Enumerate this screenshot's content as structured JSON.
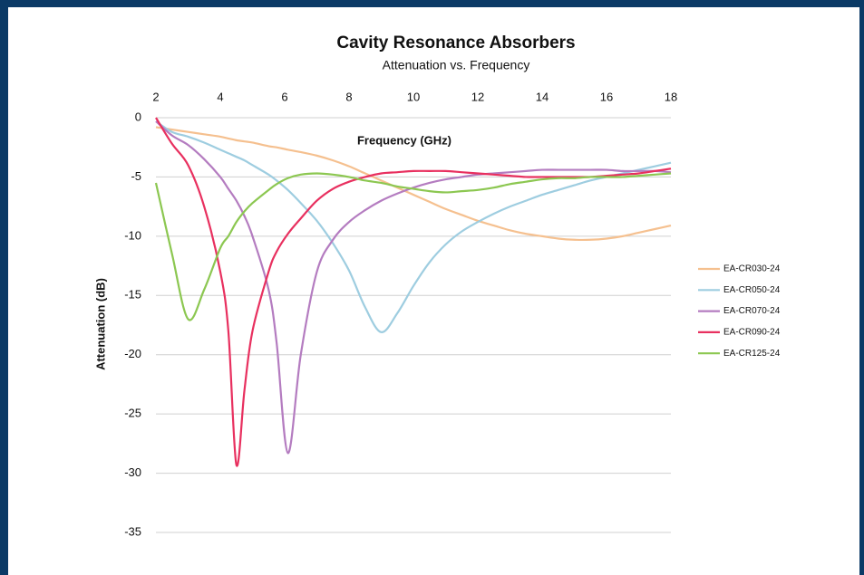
{
  "chart_data": {
    "type": "line",
    "title": "Cavity Resonance Absorbers",
    "subtitle": "Attenuation vs. Frequency",
    "x_label": "Frequency (GHz)",
    "y_label": "Attenuation (dB)",
    "x": [
      2,
      2.5,
      3,
      3.5,
      4,
      4.25,
      4.5,
      4.75,
      5,
      5.5,
      5.75,
      6.1,
      6.5,
      7,
      7.5,
      8,
      8.5,
      9,
      9.5,
      10,
      10.5,
      11,
      11.5,
      12,
      12.5,
      13,
      13.5,
      14,
      14.5,
      15,
      15.5,
      16,
      16.5,
      17,
      17.5,
      18
    ],
    "series": [
      {
        "name": "EA-CR030-24",
        "color": "#f5c08f",
        "values": [
          -0.8,
          -1.0,
          -1.2,
          -1.4,
          -1.6,
          -1.75,
          -1.9,
          -2.0,
          -2.1,
          -2.4,
          -2.5,
          -2.7,
          -2.9,
          -3.2,
          -3.6,
          -4.1,
          -4.7,
          -5.3,
          -5.9,
          -6.5,
          -7.1,
          -7.7,
          -8.2,
          -8.7,
          -9.1,
          -9.5,
          -9.8,
          -10.0,
          -10.2,
          -10.3,
          -10.3,
          -10.2,
          -10.0,
          -9.7,
          -9.4,
          -9.1
        ]
      },
      {
        "name": "EA-CR050-24",
        "color": "#9ecde0",
        "values": [
          -0.3,
          -1.2,
          -1.6,
          -2.1,
          -2.7,
          -3.0,
          -3.3,
          -3.6,
          -4.0,
          -4.8,
          -5.3,
          -6.1,
          -7.2,
          -8.7,
          -10.6,
          -12.9,
          -16.0,
          -18.1,
          -16.5,
          -14.2,
          -12.2,
          -10.7,
          -9.6,
          -8.8,
          -8.1,
          -7.5,
          -7.0,
          -6.5,
          -6.1,
          -5.7,
          -5.3,
          -5.0,
          -4.7,
          -4.4,
          -4.1,
          -3.8
        ]
      },
      {
        "name": "EA-CR070-24",
        "color": "#b47cc0",
        "values": [
          -0.3,
          -1.5,
          -2.3,
          -3.5,
          -5.0,
          -6.0,
          -7.0,
          -8.3,
          -10.0,
          -14.5,
          -19.0,
          -28.3,
          -20.0,
          -13.0,
          -10.3,
          -8.8,
          -7.8,
          -7.0,
          -6.4,
          -5.9,
          -5.5,
          -5.2,
          -5.0,
          -4.8,
          -4.7,
          -4.6,
          -4.5,
          -4.4,
          -4.4,
          -4.4,
          -4.4,
          -4.4,
          -4.5,
          -4.5,
          -4.5,
          -4.6
        ]
      },
      {
        "name": "EA-CR090-24",
        "color": "#e8305f",
        "values": [
          0,
          -2.2,
          -4.0,
          -7.5,
          -13.0,
          -18.0,
          -29.3,
          -23.0,
          -18.0,
          -13.0,
          -11.3,
          -9.8,
          -8.5,
          -7.0,
          -6.0,
          -5.4,
          -5.0,
          -4.7,
          -4.6,
          -4.5,
          -4.5,
          -4.5,
          -4.6,
          -4.7,
          -4.8,
          -4.9,
          -5.0,
          -5.0,
          -5.0,
          -5.0,
          -5.0,
          -4.9,
          -4.8,
          -4.7,
          -4.5,
          -4.3
        ]
      },
      {
        "name": "EA-CR125-24",
        "color": "#8cc751",
        "values": [
          -5.5,
          -11.5,
          -17.0,
          -14.5,
          -11.0,
          -10.0,
          -8.8,
          -7.9,
          -7.2,
          -6.1,
          -5.6,
          -5.1,
          -4.8,
          -4.7,
          -4.8,
          -5.0,
          -5.3,
          -5.5,
          -5.8,
          -6.0,
          -6.2,
          -6.3,
          -6.2,
          -6.1,
          -5.9,
          -5.6,
          -5.4,
          -5.2,
          -5.1,
          -5.1,
          -5.0,
          -5.0,
          -5.0,
          -4.9,
          -4.8,
          -4.7
        ]
      }
    ],
    "xlim": [
      2,
      18
    ],
    "xticks": [
      2,
      4,
      6,
      8,
      10,
      12,
      14,
      16,
      18
    ],
    "ylim": [
      -35,
      0
    ],
    "yticks": [
      0,
      -5,
      -10,
      -15,
      -20,
      -25,
      -30,
      -35
    ],
    "grid": true,
    "legend": "right"
  }
}
